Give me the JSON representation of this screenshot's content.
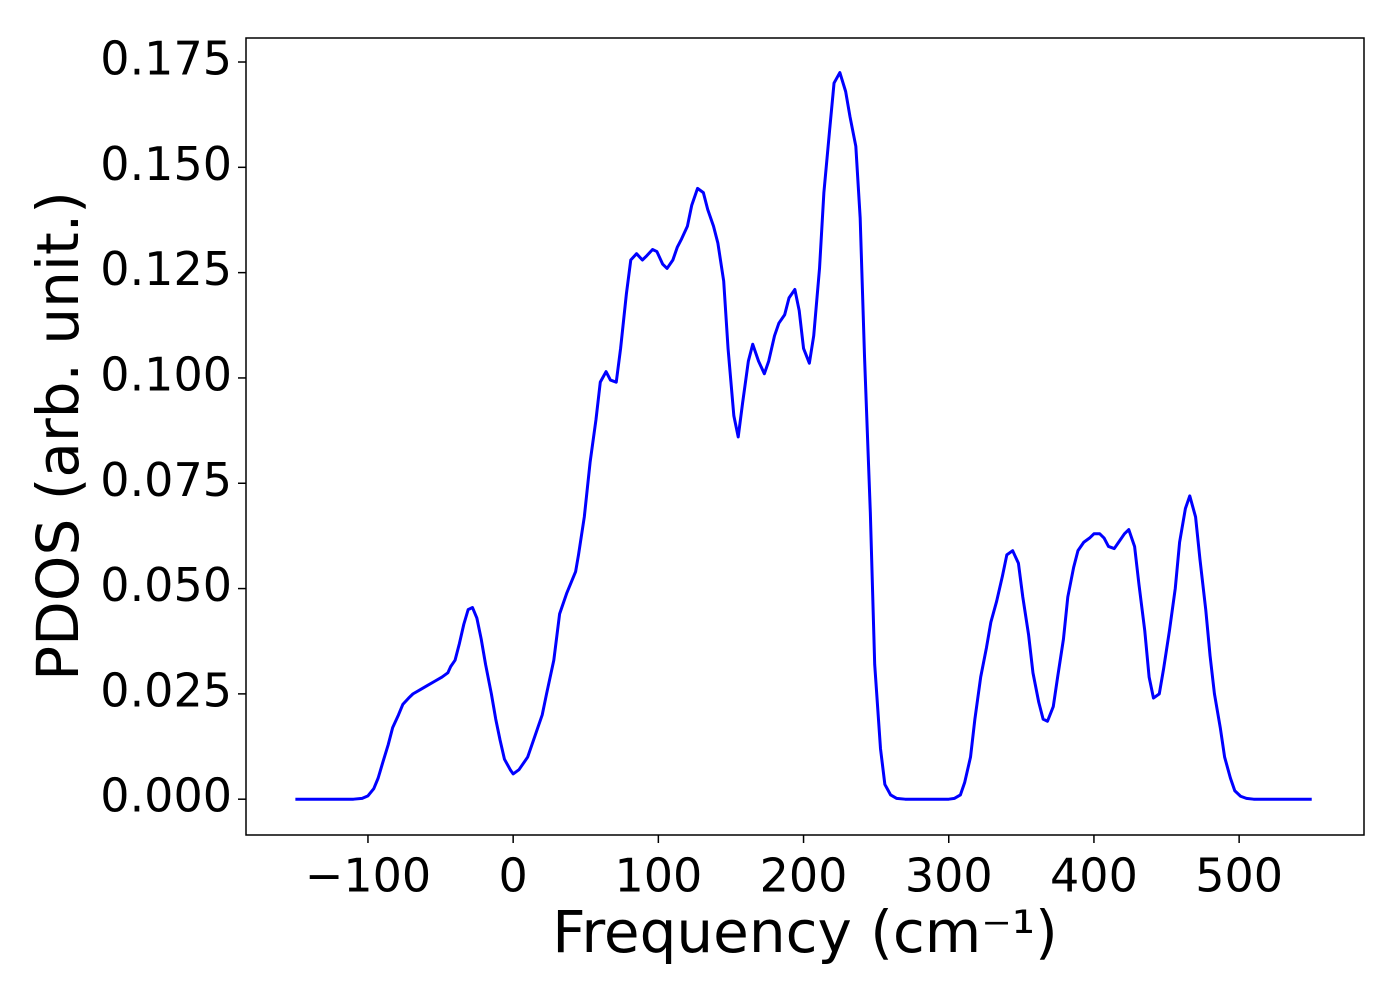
{
  "chart_data": {
    "type": "line",
    "xlabel": "Frequency (cm⁻¹)",
    "ylabel": "PDOS (arb. unit.)",
    "xlim": [
      -184,
      586
    ],
    "ylim": [
      -0.0085,
      0.1807
    ],
    "xticks": [
      {
        "value": -100,
        "label": "−100"
      },
      0,
      100,
      200,
      300,
      400,
      500
    ],
    "yticks": [
      {
        "value": 0,
        "label": "0.000"
      },
      {
        "value": 0.025,
        "label": "0.025"
      },
      {
        "value": 0.05,
        "label": "0.050"
      },
      {
        "value": 0.075,
        "label": "0.075"
      },
      {
        "value": 0.1,
        "label": "0.100"
      },
      {
        "value": 0.125,
        "label": "0.125"
      },
      {
        "value": 0.15,
        "label": "0.150"
      },
      {
        "value": 0.175,
        "label": "0.175"
      }
    ],
    "grid": false,
    "x": [
      -150,
      -140,
      -130,
      -120,
      -110,
      -104,
      -100,
      -96,
      -93,
      -90,
      -86,
      -83,
      -79,
      -76,
      -72,
      -69,
      -64,
      -59,
      -54,
      -49,
      -45,
      -43,
      -40,
      -37,
      -34,
      -31,
      -28,
      -25,
      -22,
      -19,
      -15,
      -12,
      -9,
      -6,
      -2,
      0,
      4,
      10,
      15,
      20,
      23,
      28,
      32,
      37,
      43,
      45,
      49,
      53,
      57,
      60,
      64,
      67,
      71,
      74,
      78,
      81,
      85,
      89,
      92,
      96,
      99,
      103,
      106,
      110,
      113,
      116,
      120,
      123,
      127,
      131,
      134,
      138,
      141,
      145,
      148,
      152,
      155,
      158,
      162,
      165,
      169,
      173,
      176,
      180,
      183,
      187,
      190,
      194,
      197,
      200,
      204,
      207,
      211,
      214,
      218,
      221,
      225,
      229,
      232,
      236,
      239,
      242,
      246,
      249,
      253,
      256,
      260,
      264,
      270,
      280,
      290,
      300,
      304,
      308,
      311,
      315,
      318,
      322,
      326,
      329,
      333,
      337,
      340,
      344,
      348,
      351,
      355,
      358,
      362,
      365,
      368,
      372,
      375,
      379,
      382,
      386,
      389,
      393,
      397,
      400,
      404,
      407,
      410,
      414,
      417,
      421,
      424,
      428,
      431,
      435,
      438,
      441,
      445,
      448,
      452,
      456,
      459,
      463,
      466,
      470,
      473,
      477,
      480,
      483,
      487,
      490,
      494,
      497,
      501,
      505,
      510,
      520,
      530,
      540,
      550
    ],
    "series": [
      {
        "color": "#0000ff",
        "values": [
          0,
          0,
          0,
          0,
          0,
          0.0002,
          0.0008,
          0.0025,
          0.005,
          0.0085,
          0.013,
          0.017,
          0.02,
          0.0225,
          0.024,
          0.025,
          0.026,
          0.027,
          0.028,
          0.029,
          0.03,
          0.0315,
          0.033,
          0.037,
          0.0415,
          0.045,
          0.0455,
          0.043,
          0.038,
          0.032,
          0.025,
          0.019,
          0.014,
          0.0095,
          0.007,
          0.006,
          0.007,
          0.01,
          0.015,
          0.02,
          0.025,
          0.033,
          0.044,
          0.049,
          0.054,
          0.058,
          0.067,
          0.08,
          0.09,
          0.099,
          0.1015,
          0.0995,
          0.099,
          0.107,
          0.12,
          0.128,
          0.1295,
          0.128,
          0.129,
          0.1305,
          0.13,
          0.127,
          0.126,
          0.128,
          0.131,
          0.133,
          0.136,
          0.141,
          0.145,
          0.144,
          0.14,
          0.136,
          0.132,
          0.123,
          0.107,
          0.091,
          0.086,
          0.094,
          0.104,
          0.108,
          0.104,
          0.101,
          0.104,
          0.11,
          0.113,
          0.115,
          0.119,
          0.121,
          0.116,
          0.107,
          0.1035,
          0.11,
          0.126,
          0.144,
          0.159,
          0.17,
          0.1725,
          0.168,
          0.162,
          0.155,
          0.138,
          0.105,
          0.068,
          0.032,
          0.012,
          0.0035,
          0.001,
          0.0002,
          0,
          0,
          0,
          0,
          0.0002,
          0.001,
          0.004,
          0.01,
          0.019,
          0.029,
          0.036,
          0.042,
          0.047,
          0.053,
          0.058,
          0.059,
          0.056,
          0.048,
          0.039,
          0.03,
          0.023,
          0.019,
          0.0185,
          0.022,
          0.029,
          0.038,
          0.048,
          0.055,
          0.059,
          0.061,
          0.062,
          0.063,
          0.063,
          0.062,
          0.06,
          0.0595,
          0.061,
          0.063,
          0.064,
          0.06,
          0.051,
          0.04,
          0.029,
          0.024,
          0.025,
          0.031,
          0.04,
          0.05,
          0.061,
          0.069,
          0.072,
          0.067,
          0.057,
          0.045,
          0.034,
          0.025,
          0.017,
          0.01,
          0.005,
          0.002,
          0.0007,
          0.0002,
          0,
          0,
          0,
          0,
          0
        ]
      }
    ]
  }
}
